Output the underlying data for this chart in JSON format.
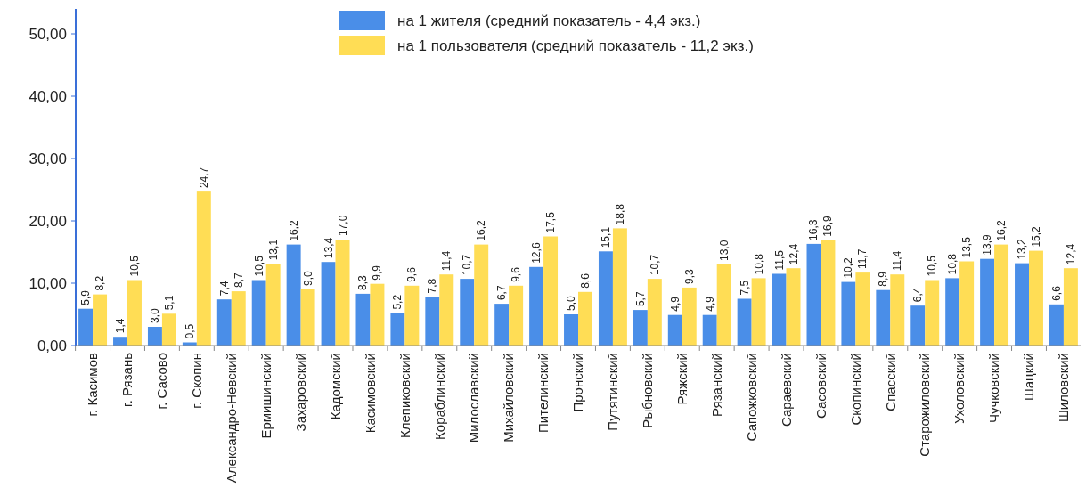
{
  "chart_data": {
    "type": "bar",
    "categories": [
      "г. Касимов",
      "г. Рязань",
      "г. Сасово",
      "г. Скопин",
      "Александро-Невский",
      "Ермишинский",
      "Захаровский",
      "Кадомский",
      "Касимовский",
      "Клепиковский",
      "Кораблинский",
      "Милославский",
      "Михайловский",
      "Пителинский",
      "Пронский",
      "Путятинский",
      "Рыбновский",
      "Ряжский",
      "Рязанский",
      "Сапожковский",
      "Сараевский",
      "Сасовский",
      "Скопинский",
      "Спасский",
      "Старожиловский",
      "Ухоловский",
      "Чучковский",
      "Шацкий",
      "Шиловский"
    ],
    "series": [
      {
        "name": "на 1 жителя (средний показатель - 4,4 экз.)",
        "color": "#4a8ee8",
        "values": [
          5.9,
          1.4,
          3.0,
          0.5,
          7.4,
          10.5,
          16.2,
          13.4,
          8.3,
          5.2,
          7.8,
          10.7,
          6.7,
          12.6,
          5.0,
          15.1,
          5.7,
          4.9,
          4.9,
          7.5,
          11.5,
          16.3,
          10.2,
          8.9,
          6.4,
          10.8,
          13.9,
          13.2,
          6.6
        ],
        "value_labels": [
          "5,9",
          "1,4",
          "3,0",
          "0,5",
          "7,4",
          "10,5",
          "16,2",
          "13,4",
          "8,3",
          "5,2",
          "7,8",
          "10,7",
          "6,7",
          "12,6",
          "5,0",
          "15,1",
          "5,7",
          "4,9",
          "4,9",
          "7,5",
          "11,5",
          "16,3",
          "10,2",
          "8,9",
          "6,4",
          "10,8",
          "13,9",
          "13,2",
          "6,6"
        ]
      },
      {
        "name": "на 1 пользователя (средний показатель - 11,2 экз.)",
        "color": "#ffdd55",
        "values": [
          8.2,
          10.5,
          5.1,
          24.7,
          8.7,
          13.1,
          9.0,
          17.0,
          9.9,
          9.6,
          11.4,
          16.2,
          9.6,
          17.5,
          8.6,
          18.8,
          10.7,
          9.3,
          13.0,
          10.8,
          12.4,
          16.9,
          11.7,
          11.4,
          10.5,
          13.5,
          16.2,
          15.2,
          12.4
        ],
        "value_labels": [
          "8,2",
          "10,5",
          "5,1",
          "24,7",
          "8,7",
          "13,1",
          "9,0",
          "17,0",
          "9,9",
          "9,6",
          "11,4",
          "16,2",
          "9,6",
          "17,5",
          "8,6",
          "18,8",
          "10,7",
          "9,3",
          "13,0",
          "10,8",
          "12,4",
          "16,9",
          "11,7",
          "11,4",
          "10,5",
          "13,5",
          "16,2",
          "15,2",
          "12,4"
        ]
      }
    ],
    "ylim": [
      0,
      54
    ],
    "yticks": [
      {
        "value": 0,
        "label": "0,00"
      },
      {
        "value": 10,
        "label": "10,00"
      },
      {
        "value": 20,
        "label": "20,00"
      },
      {
        "value": 30,
        "label": "30,00"
      },
      {
        "value": 40,
        "label": "40,00"
      },
      {
        "value": 50,
        "label": "50,00"
      }
    ],
    "grid": false,
    "legend": "top"
  }
}
